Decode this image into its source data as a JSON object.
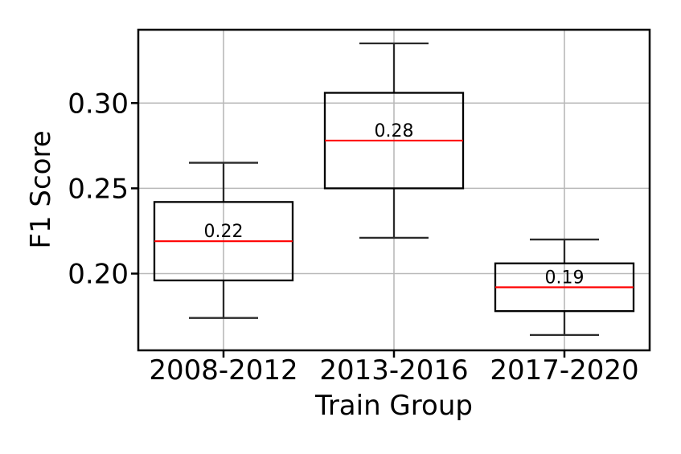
{
  "chart_data": {
    "type": "boxplot",
    "title": "",
    "xlabel": "Train Group",
    "ylabel": "F1 Score",
    "categories": [
      "2008-2012",
      "2013-2016",
      "2017-2020"
    ],
    "series": [
      {
        "category": "2008-2012",
        "whisker_low": 0.174,
        "q1": 0.196,
        "median": 0.219,
        "q3": 0.242,
        "whisker_high": 0.265,
        "median_label": "0.22"
      },
      {
        "category": "2013-2016",
        "whisker_low": 0.221,
        "q1": 0.25,
        "median": 0.278,
        "q3": 0.306,
        "whisker_high": 0.335,
        "median_label": "0.28"
      },
      {
        "category": "2017-2020",
        "whisker_low": 0.164,
        "q1": 0.178,
        "median": 0.192,
        "q3": 0.206,
        "whisker_high": 0.22,
        "median_label": "0.19"
      }
    ],
    "yticks": [
      0.2,
      0.25,
      0.3
    ],
    "ytick_labels": [
      "0.20",
      "0.25",
      "0.30"
    ],
    "ylim": [
      0.155,
      0.343
    ],
    "grid": true,
    "legend": false,
    "colors": {
      "box_edge": "#000000",
      "whisker": "#2a2a2a",
      "cap": "#2a2a2a",
      "median": "#ff0000",
      "median_label": "#0000ff",
      "grid": "#b9b9b9",
      "spine": "#000000",
      "tick": "#000000",
      "background": "#ffffff",
      "text": "#000000"
    }
  }
}
